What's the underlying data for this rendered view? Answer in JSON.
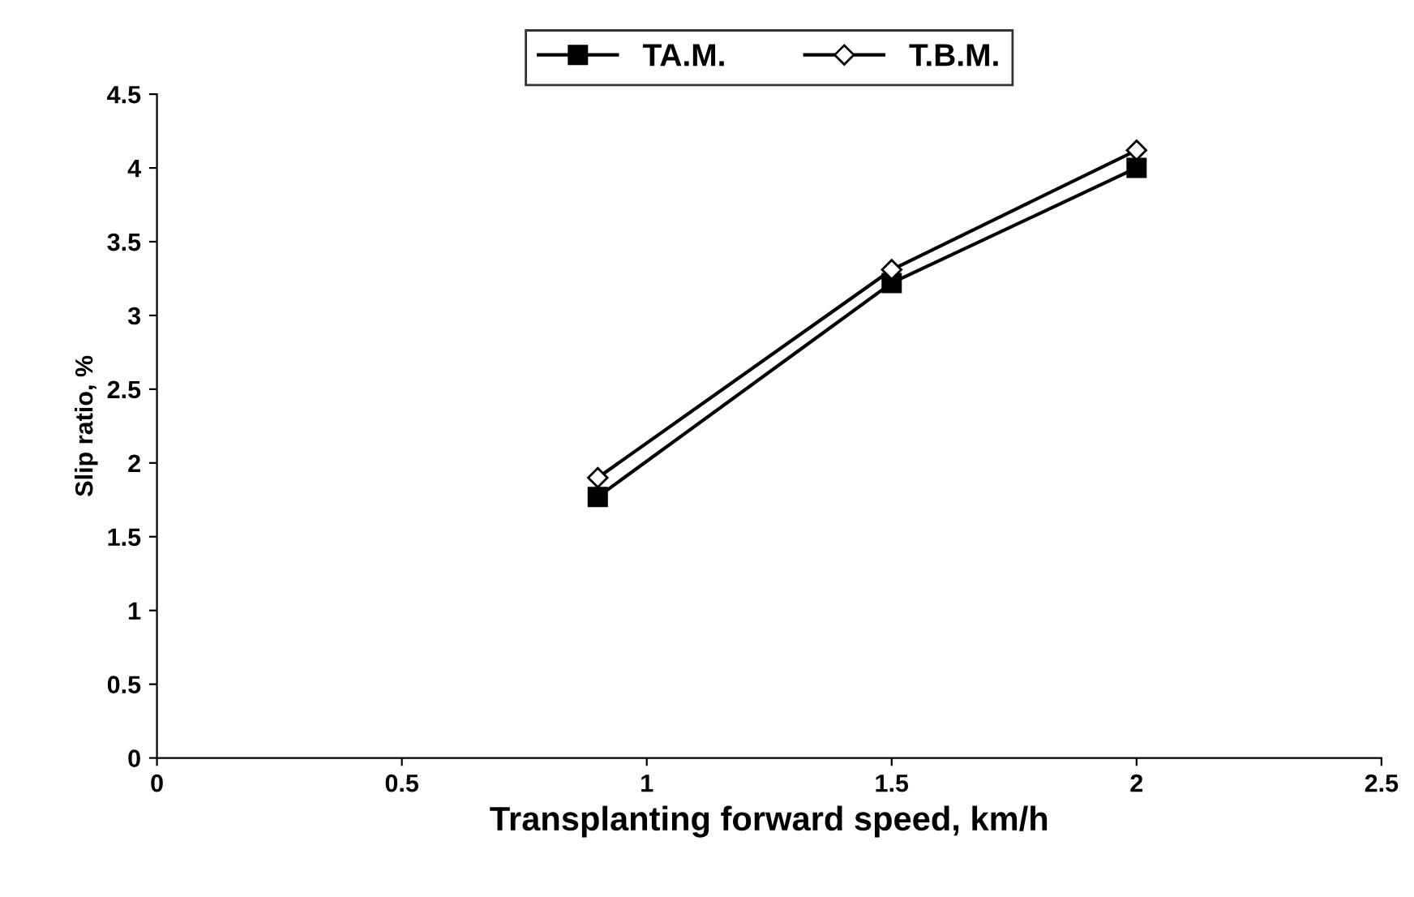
{
  "chart_data": {
    "type": "line",
    "xlabel": "Transplanting forward speed, km/h",
    "ylabel": "Slip ratio, %",
    "x": [
      0.9,
      1.5,
      2.0
    ],
    "series": [
      {
        "name": "TA.M.",
        "color": "#000000",
        "values": [
          1.77,
          3.22,
          4.0
        ],
        "marker": "square"
      },
      {
        "name": "T.B.M.",
        "color": "#000000",
        "values": [
          1.9,
          3.31,
          4.12
        ],
        "marker": "diamond"
      }
    ],
    "xlim": [
      0,
      2.5
    ],
    "xticks": [
      0,
      0.5,
      1,
      1.5,
      2,
      2.5
    ],
    "ylim": [
      0,
      4.5
    ],
    "yticks": [
      0,
      0.5,
      1,
      1.5,
      2,
      2.5,
      3,
      3.5,
      4,
      4.5
    ],
    "grid": false,
    "legend": "top",
    "line_style": "solid"
  }
}
